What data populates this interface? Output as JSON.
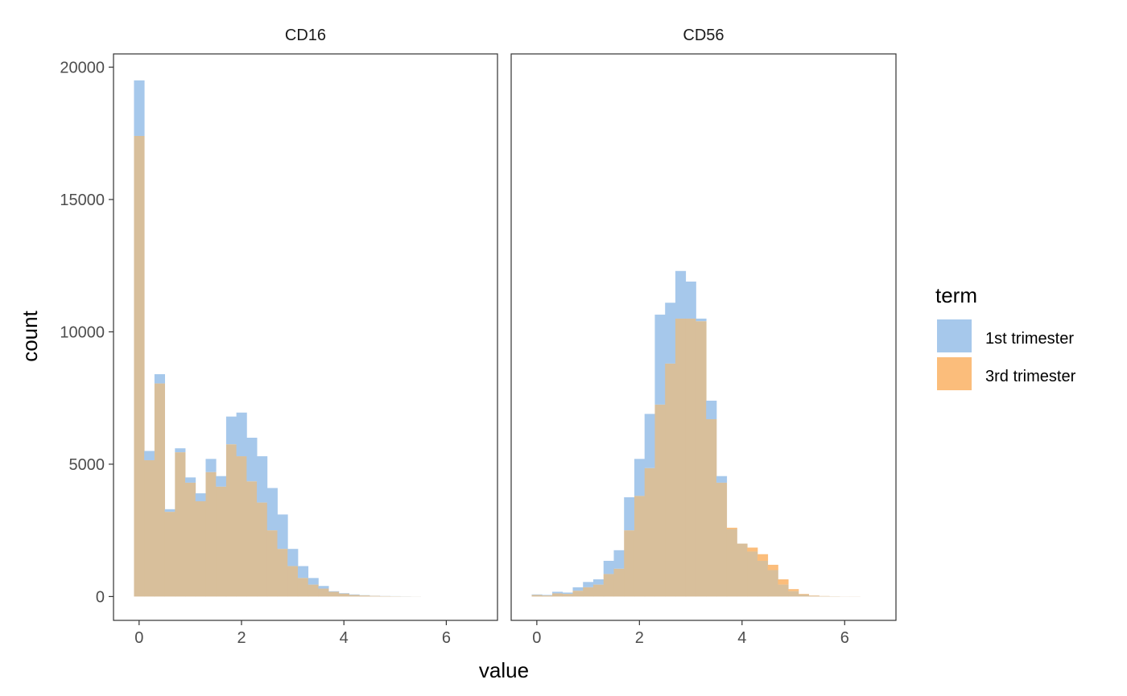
{
  "chart_data": {
    "type": "histogram",
    "xlabel": "value",
    "ylabel": "count",
    "bin_width": 0.2,
    "xlim": [
      -0.5,
      7.0
    ],
    "ylim": [
      -900,
      20500
    ],
    "x_ticks": [
      0,
      2,
      4,
      6
    ],
    "y_ticks": [
      0,
      5000,
      10000,
      15000,
      20000
    ],
    "grid": false,
    "legend": {
      "title": "term",
      "position": "right",
      "entries": [
        {
          "label": "1st trimester",
          "color": "#a6c8eb"
        },
        {
          "label": "3rd trimester",
          "color": "#fbbd7b"
        }
      ]
    },
    "overlap_color": "#d8bf9b",
    "panels": [
      {
        "title": "CD16",
        "bin_starts": [
          -0.1,
          0.1,
          0.3,
          0.5,
          0.7,
          0.9,
          1.1,
          1.3,
          1.5,
          1.7,
          1.9,
          2.1,
          2.3,
          2.5,
          2.7,
          2.9,
          3.1,
          3.3,
          3.5,
          3.7,
          3.9,
          4.1,
          4.3,
          4.5,
          4.7,
          4.9,
          5.1,
          5.3
        ],
        "series": [
          {
            "name": "1st trimester",
            "values": [
              19500,
              5500,
              8400,
              3300,
              5600,
              4500,
              3900,
              5200,
              4550,
              6800,
              6950,
              6000,
              5300,
              4100,
              3100,
              1800,
              1150,
              700,
              400,
              200,
              130,
              80,
              50,
              30,
              20,
              15,
              10,
              5
            ]
          },
          {
            "name": "3rd trimester",
            "values": [
              17400,
              5150,
              8050,
              3200,
              5450,
              4300,
              3600,
              4700,
              4150,
              5750,
              5300,
              4350,
              3550,
              2500,
              1800,
              1150,
              700,
              450,
              300,
              180,
              110,
              60,
              40,
              25,
              15,
              10,
              5,
              3
            ]
          }
        ]
      },
      {
        "title": "CD56",
        "bin_starts": [
          -0.1,
          0.1,
          0.3,
          0.5,
          0.7,
          0.9,
          1.1,
          1.3,
          1.5,
          1.7,
          1.9,
          2.1,
          2.3,
          2.5,
          2.7,
          2.9,
          3.1,
          3.3,
          3.5,
          3.7,
          3.9,
          4.1,
          4.3,
          4.5,
          4.7,
          4.9,
          5.1,
          5.3,
          5.5,
          5.7,
          5.9,
          6.1
        ],
        "series": [
          {
            "name": "1st trimester",
            "values": [
              80,
              60,
              180,
              150,
              350,
              550,
              650,
              1350,
              1750,
              3750,
              5200,
              6900,
              10650,
              11100,
              12300,
              11900,
              10500,
              7400,
              4550,
              2550,
              2000,
              1700,
              1350,
              1000,
              450,
              200,
              80,
              30,
              15,
              10,
              5,
              5
            ]
          },
          {
            "name": "3rd trimester",
            "values": [
              60,
              40,
              120,
              100,
              220,
              350,
              450,
              850,
              1050,
              2500,
              3800,
              4850,
              7250,
              8800,
              10500,
              10500,
              10400,
              6700,
              4300,
              2600,
              2000,
              1850,
              1600,
              1200,
              650,
              280,
              100,
              40,
              20,
              10,
              5,
              5
            ]
          }
        ]
      }
    ]
  }
}
